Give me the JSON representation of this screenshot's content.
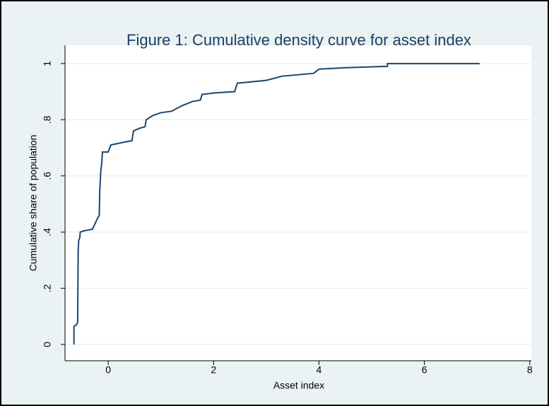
{
  "chart_data": {
    "type": "line",
    "title": "Figure 1: Cumulative density curve for asset index",
    "x_label": "Asset index",
    "y_label": "Cumulative share of population",
    "x": [
      -0.65,
      -0.65,
      -0.6,
      -0.58,
      -0.57,
      -0.56,
      -0.54,
      -0.53,
      -0.45,
      -0.3,
      -0.25,
      -0.2,
      -0.17,
      -0.16,
      -0.14,
      -0.12,
      -0.11,
      0,
      0.05,
      0.3,
      0.45,
      0.48,
      0.6,
      0.7,
      0.72,
      0.85,
      1,
      1.2,
      1.4,
      1.6,
      1.75,
      1.78,
      2,
      2.4,
      2.45,
      3,
      3.3,
      3.9,
      4,
      4.5,
      5.3,
      5.3,
      7.05
    ],
    "series": [
      {
        "name": "Cumulative share",
        "color": "#1a476f",
        "values": [
          0,
          0.065,
          0.07,
          0.08,
          0.33,
          0.37,
          0.38,
          0.4,
          0.405,
          0.41,
          0.43,
          0.45,
          0.46,
          0.55,
          0.62,
          0.65,
          0.685,
          0.685,
          0.71,
          0.72,
          0.725,
          0.76,
          0.77,
          0.775,
          0.8,
          0.815,
          0.825,
          0.83,
          0.85,
          0.865,
          0.87,
          0.89,
          0.895,
          0.9,
          0.93,
          0.94,
          0.955,
          0.965,
          0.98,
          0.985,
          0.99,
          1,
          1
        ]
      }
    ],
    "xlim": [
      -0.82,
      8.03
    ],
    "xticks": [
      0,
      2,
      4,
      6,
      8
    ],
    "ylim": [
      -0.058,
      1.065
    ],
    "yticks": [
      0,
      {
        "value": 0.2,
        "label": ".2"
      },
      {
        "value": 0.4,
        "label": ".4"
      },
      {
        "value": 0.6,
        "label": ".6"
      },
      {
        "value": 0.8,
        "label": ".8"
      },
      1
    ],
    "grid": true
  }
}
